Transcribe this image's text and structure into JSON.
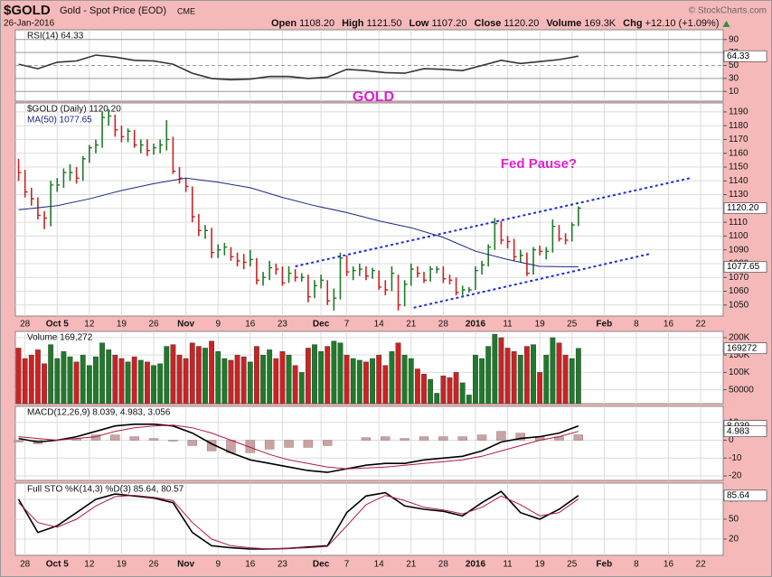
{
  "header": {
    "symbol": "$GOLD",
    "name": "Gold - Spot Price (EOD)",
    "exchange": "CME",
    "date": "26-Jan-2016",
    "source": "© StockCharts.com",
    "quote": [
      [
        "Open",
        "1108.20"
      ],
      [
        "High",
        "1121.50"
      ],
      [
        "Low",
        "1107.20"
      ],
      [
        "Close",
        "1120.20"
      ],
      [
        "Volume",
        "169.3K"
      ],
      [
        "Chg",
        "+12.10 (+1.09%)"
      ]
    ]
  },
  "chart_data": [
    {
      "type": "line",
      "title": "RSI(14) 64.33",
      "x": [
        -1,
        2,
        5,
        8,
        11,
        14,
        17,
        20,
        23,
        26,
        29,
        32,
        35,
        38,
        41,
        44,
        47,
        50,
        53,
        56,
        59,
        62,
        65,
        68,
        71,
        74,
        77,
        80,
        83,
        86
      ],
      "series": [
        {
          "color": "#333333",
          "values": [
            52,
            45,
            55,
            57,
            66,
            63,
            58,
            57,
            52,
            38,
            30,
            28,
            29,
            33,
            33,
            30,
            32,
            44,
            42,
            39,
            38,
            45,
            44,
            42,
            50,
            58,
            53,
            56,
            59,
            64.33
          ]
        }
      ],
      "ylim": [
        -5,
        105
      ],
      "yticks": [
        10,
        30,
        50,
        70,
        90
      ]
    },
    {
      "type": "ohlc",
      "title": "$GOLD (Daily) 1120.20",
      "x": [
        -1,
        0,
        1,
        2,
        3,
        4,
        5,
        6,
        7,
        8,
        9,
        10,
        11,
        12,
        13,
        14,
        15,
        16,
        17,
        18,
        19,
        20,
        21,
        22,
        23,
        24,
        25,
        26,
        27,
        28,
        29,
        30,
        31,
        32,
        33,
        34,
        35,
        36,
        37,
        38,
        39,
        40,
        41,
        42,
        43,
        44,
        45,
        46,
        47,
        48,
        49,
        50,
        51,
        52,
        53,
        54,
        55,
        56,
        57,
        58,
        59,
        60,
        61,
        62,
        63,
        64,
        65,
        66,
        67,
        68,
        69,
        70,
        71,
        72,
        73,
        74,
        75,
        76,
        77,
        78,
        79,
        80,
        81,
        82,
        83,
        84,
        85,
        86
      ],
      "high": [
        1156,
        1148,
        1135,
        1128,
        1118,
        1140,
        1142,
        1149,
        1152,
        1150,
        1158,
        1166,
        1170,
        1190,
        1192,
        1188,
        1180,
        1178,
        1177,
        1170,
        1170,
        1167,
        1170,
        1184,
        1172,
        1150,
        1142,
        1136,
        1116,
        1108,
        1106,
        1094,
        1095,
        1092,
        1088,
        1087,
        1090,
        1084,
        1074,
        1082,
        1080,
        1078,
        1078,
        1076,
        1073,
        1072,
        1068,
        1072,
        1068,
        1062,
        1088,
        1086,
        1078,
        1080,
        1078,
        1077,
        1075,
        1068,
        1078,
        1072,
        1068,
        1080,
        1078,
        1074,
        1078,
        1078,
        1078,
        1072,
        1070,
        1064,
        1063,
        1078,
        1082,
        1094,
        1113,
        1111,
        1100,
        1098,
        1090,
        1088,
        1092,
        1093,
        1092,
        1112,
        1108,
        1102,
        1110,
        1121.5
      ],
      "low": [
        1140,
        1128,
        1122,
        1112,
        1105,
        1107,
        1132,
        1135,
        1140,
        1138,
        1140,
        1153,
        1160,
        1164,
        1180,
        1172,
        1168,
        1168,
        1164,
        1160,
        1158,
        1159,
        1160,
        1162,
        1145,
        1138,
        1132,
        1110,
        1100,
        1098,
        1084,
        1084,
        1086,
        1082,
        1078,
        1076,
        1078,
        1065,
        1064,
        1068,
        1072,
        1064,
        1066,
        1067,
        1067,
        1052,
        1055,
        1062,
        1050,
        1046,
        1054,
        1071,
        1068,
        1071,
        1068,
        1069,
        1061,
        1057,
        1060,
        1046,
        1049,
        1064,
        1070,
        1066,
        1067,
        1073,
        1066,
        1065,
        1057,
        1057,
        1059,
        1061,
        1072,
        1078,
        1090,
        1094,
        1091,
        1082,
        1081,
        1071,
        1072,
        1086,
        1083,
        1088,
        1096,
        1094,
        1096,
        1107.2
      ],
      "close": [
        1146,
        1132,
        1127,
        1115,
        1113,
        1137,
        1137,
        1146,
        1146,
        1142,
        1156,
        1164,
        1166,
        1186,
        1187,
        1177,
        1172,
        1176,
        1166,
        1166,
        1162,
        1164,
        1166,
        1170,
        1147,
        1142,
        1136,
        1114,
        1104,
        1104,
        1088,
        1090,
        1092,
        1085,
        1082,
        1081,
        1083,
        1068,
        1070,
        1077,
        1076,
        1066,
        1073,
        1070,
        1070,
        1056,
        1064,
        1068,
        1053,
        1055,
        1084,
        1074,
        1075,
        1076,
        1071,
        1075,
        1063,
        1061,
        1073,
        1050,
        1065,
        1076,
        1073,
        1068,
        1076,
        1076,
        1069,
        1068,
        1059,
        1061,
        1061,
        1075,
        1079,
        1092,
        1109,
        1097,
        1096,
        1085,
        1086,
        1073,
        1090,
        1089,
        1089,
        1107,
        1098,
        1097,
        1108,
        1120.2
      ],
      "close_tag": {
        "value": 1120.2,
        "label": "1120.20"
      },
      "up_color": "#1f7a2a",
      "down_color": "#cc2222",
      "overlays": [
        {
          "name": "MA(50) 1077.65",
          "color": "#1a2a80",
          "x": [
            -1,
            5,
            10,
            15,
            20,
            25,
            30,
            35,
            40,
            45,
            50,
            55,
            60,
            65,
            70,
            75,
            80,
            86
          ],
          "values": [
            1119,
            1122,
            1127,
            1133,
            1138,
            1142,
            1139,
            1135,
            1128,
            1122,
            1117,
            1111,
            1106,
            1099,
            1089,
            1083,
            1078,
            1077.65
          ]
        }
      ],
      "trendlines": {
        "color": "#1f2fd0",
        "lines": [
          {
            "x": [
              42,
              103.4
            ],
            "values": [
              1078,
              1142
            ]
          },
          {
            "x": [
              60.4,
              97
            ],
            "values": [
              1048,
              1087
            ]
          }
        ]
      },
      "annotations": [
        "GOLD",
        "Fed Pause?"
      ],
      "annotation_color": "#e020d0",
      "ylim": [
        1042,
        1196.5
      ],
      "yticks": [
        1050,
        1060,
        1070,
        1080,
        1090,
        1100,
        1110,
        1120,
        1130,
        1140,
        1150,
        1160,
        1170,
        1180,
        1190
      ],
      "xlim": [
        -1.5,
        108.5
      ],
      "xticks": [
        {
          "value": 0,
          "label": "28"
        },
        {
          "value": 5,
          "label": "Oct 5"
        },
        {
          "value": 10,
          "label": "12"
        },
        {
          "value": 15,
          "label": "19"
        },
        {
          "value": 20,
          "label": "26"
        },
        {
          "value": 25,
          "label": "Nov"
        },
        {
          "value": 30,
          "label": "9"
        },
        {
          "value": 35,
          "label": "16"
        },
        {
          "value": 40,
          "label": "23"
        },
        {
          "value": 46,
          "label": "Dec"
        },
        {
          "value": 50,
          "label": "7"
        },
        {
          "value": 55,
          "label": "14"
        },
        {
          "value": 60,
          "label": "21"
        },
        {
          "value": 65,
          "label": "28"
        },
        {
          "value": 70,
          "label": "2016"
        },
        {
          "value": 75,
          "label": "11"
        },
        {
          "value": 80,
          "label": "19"
        },
        {
          "value": 85,
          "label": "25"
        },
        {
          "value": 90,
          "label": "Feb"
        },
        {
          "value": 95,
          "label": "8"
        },
        {
          "value": 100,
          "label": "16"
        },
        {
          "value": 105,
          "label": "22"
        }
      ],
      "grid": true
    },
    {
      "type": "bar",
      "title": "Volume 169,272",
      "values": [
        170000,
        140000,
        150000,
        165000,
        125000,
        180000,
        140000,
        160000,
        145000,
        130000,
        150000,
        120000,
        145000,
        185000,
        165000,
        150000,
        140000,
        130000,
        145000,
        135000,
        130000,
        120000,
        125000,
        175000,
        180000,
        150000,
        140000,
        185000,
        175000,
        170000,
        190000,
        160000,
        140000,
        135000,
        150000,
        145000,
        130000,
        175000,
        150000,
        165000,
        140000,
        160000,
        150000,
        120000,
        100000,
        170000,
        180000,
        160000,
        175000,
        190000,
        185000,
        150000,
        140000,
        135000,
        130000,
        140000,
        150000,
        120000,
        160000,
        185000,
        150000,
        140000,
        110000,
        95000,
        80000,
        40000,
        90000,
        85000,
        100000,
        70000,
        35000,
        150000,
        140000,
        175000,
        210000,
        200000,
        170000,
        160000,
        150000,
        175000,
        180000,
        100000,
        150000,
        200000,
        185000,
        150000,
        140000,
        169272
      ],
      "ylim": [
        10000,
        218000
      ],
      "yticks": [
        50000,
        {
          "value": 100000,
          "label": "100K"
        },
        {
          "value": 150000,
          "label": "150K"
        },
        {
          "value": 200000,
          "label": "200K"
        }
      ]
    },
    {
      "type": "macd",
      "title": "MACD(12,26,9) 8.039, 4.983, 3.056",
      "x": [
        -1,
        2,
        5,
        8,
        11,
        14,
        17,
        20,
        23,
        26,
        29,
        32,
        35,
        38,
        41,
        44,
        47,
        50,
        53,
        56,
        59,
        62,
        65,
        68,
        71,
        74,
        77,
        80,
        83,
        86
      ],
      "series": [
        {
          "color": "#000000",
          "values": [
            1,
            -1,
            0,
            2,
            5,
            8,
            9,
            9,
            8,
            4,
            -2,
            -7,
            -11,
            -13,
            -15,
            -17,
            -18,
            -16,
            -14,
            -13,
            -13,
            -11,
            -10,
            -9,
            -6,
            -1,
            1,
            2,
            4,
            8.039
          ]
        },
        {
          "color": "#b01c3c",
          "values": [
            2,
            1,
            0,
            1,
            2,
            5,
            7,
            8,
            8.5,
            7,
            4,
            0,
            -4,
            -8,
            -11,
            -13,
            -15,
            -16,
            -15.5,
            -15,
            -14,
            -13,
            -12,
            -11,
            -9,
            -6,
            -3,
            0,
            2,
            4.983
          ]
        }
      ],
      "histogram": {
        "color": "#c9a3a3",
        "values": [
          -1,
          -2,
          0,
          1,
          3,
          3,
          2,
          1,
          -0.5,
          -3,
          -6,
          -7,
          -7,
          -5,
          -4,
          -4,
          -3,
          0,
          1.5,
          2,
          1,
          2,
          2,
          2,
          3,
          5,
          4,
          2,
          2,
          3.056
        ]
      },
      "ylim": [
        -22.5,
        19
      ],
      "yticks": [
        -20,
        -10,
        0,
        10
      ]
    },
    {
      "type": "line",
      "title": "Full STO %K(14,3) %D(3) 85.64, 80.57",
      "x": [
        -1,
        2,
        5,
        8,
        11,
        14,
        17,
        20,
        23,
        26,
        29,
        32,
        35,
        38,
        41,
        44,
        47,
        50,
        53,
        56,
        59,
        62,
        65,
        68,
        71,
        74,
        77,
        80,
        83,
        86
      ],
      "series": [
        {
          "color": "#000000",
          "values": [
            80,
            30,
            40,
            60,
            80,
            88,
            85,
            82,
            75,
            30,
            10,
            7,
            5,
            5,
            6,
            8,
            10,
            60,
            85,
            90,
            70,
            65,
            62,
            55,
            75,
            92,
            60,
            50,
            65,
            85.64
          ]
        },
        {
          "color": "#b01c3c",
          "values": [
            75,
            45,
            38,
            50,
            70,
            84,
            86,
            83,
            78,
            45,
            20,
            10,
            7,
            5,
            6,
            7,
            9,
            40,
            72,
            86,
            78,
            68,
            64,
            58,
            68,
            85,
            72,
            55,
            60,
            80.57
          ]
        }
      ],
      "ylim": [
        -4.5,
        104.5
      ],
      "yticks": [
        20,
        50,
        80
      ]
    }
  ]
}
